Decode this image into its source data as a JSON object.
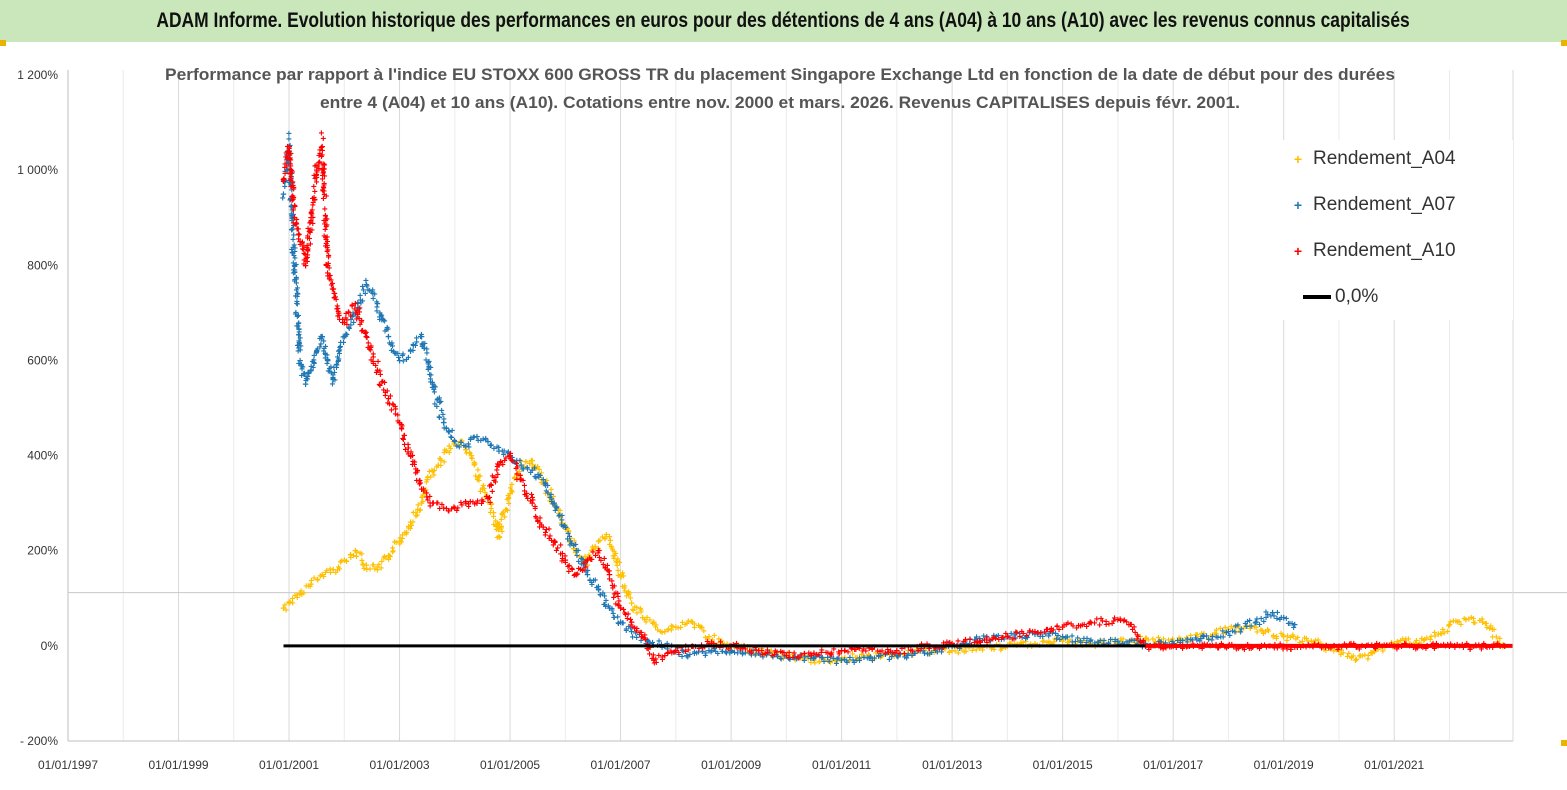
{
  "header": {
    "banner_title": "ADAM Informe. Evolution historique des performances en euros pour des détentions de 4 ans (A04) à 10 ans (A10) avec les revenus connus capitalisés"
  },
  "chart_data": {
    "type": "scatter",
    "title_lines": [
      "Performance par rapport à l'indice EU STOXX 600 GROSS TR  du placement Singapore Exchange Ltd en fonction de la date de début pour des durées",
      "entre 4 (A04) et 10 ans (A10). Cotations entre nov. 2000 et mars. 2026. Revenus CAPITALISES depuis févr. 2001."
    ],
    "xlabel": "",
    "ylabel": "",
    "x_ticks": [
      "01/01/1997",
      "01/01/1999",
      "01/01/2001",
      "01/01/2003",
      "01/01/2005",
      "01/01/2007",
      "01/01/2009",
      "01/01/2011",
      "01/01/2013",
      "01/01/2015",
      "01/01/2017",
      "01/01/2019",
      "01/01/2021"
    ],
    "xlim": [
      1997.0,
      2023.15
    ],
    "y_ticks": [
      "1 200%",
      "1 000%",
      "800%",
      "600%",
      "400%",
      "200%",
      "0%",
      "- 200%"
    ],
    "ylim": [
      -200,
      1200
    ],
    "grid": "vertical",
    "legend_position": "top-right",
    "series": [
      {
        "name": "Rendement_A04",
        "color": "#ffc000",
        "x": [
          2000.9,
          2001.0,
          2001.2,
          2001.4,
          2001.6,
          2001.8,
          2002.0,
          2002.2,
          2002.4,
          2002.6,
          2002.8,
          2003.0,
          2003.2,
          2003.4,
          2003.5,
          2003.7,
          2003.9,
          2004.1,
          2004.3,
          2004.5,
          2004.7,
          2004.8,
          2005.0,
          2005.2,
          2005.4,
          2005.6,
          2005.8,
          2006.0,
          2006.2,
          2006.4,
          2006.6,
          2006.8,
          2007.0,
          2007.2,
          2007.4,
          2007.6,
          2007.8,
          2008.0,
          2008.3,
          2008.6,
          2009.0,
          2009.5,
          2010.0,
          2010.5,
          2011.0,
          2011.5,
          2012.0,
          2012.5,
          2013.0,
          2013.5,
          2014.0,
          2014.5,
          2015.0,
          2015.5,
          2016.0,
          2016.5,
          2017.0,
          2017.5,
          2018.0,
          2018.5,
          2019.0,
          2019.5,
          2020.0,
          2020.3,
          2020.6,
          2021.0,
          2021.5,
          2021.8,
          2022.0,
          2022.3,
          2022.6,
          2023.0
        ],
        "y": [
          80,
          90,
          110,
          130,
          150,
          160,
          180,
          200,
          170,
          160,
          190,
          220,
          260,
          300,
          350,
          380,
          420,
          430,
          400,
          330,
          280,
          230,
          320,
          380,
          390,
          350,
          300,
          250,
          200,
          170,
          220,
          230,
          150,
          90,
          60,
          50,
          30,
          40,
          50,
          20,
          0,
          -10,
          -20,
          -30,
          -25,
          -20,
          -15,
          -10,
          -10,
          -5,
          0,
          5,
          10,
          5,
          10,
          15,
          10,
          20,
          35,
          40,
          20,
          10,
          -10,
          -30,
          -15,
          5,
          15,
          25,
          45,
          55,
          50,
          0
        ]
      },
      {
        "name": "Rendement_A07",
        "color": "#1f77b4",
        "x": [
          2000.9,
          2001.0,
          2001.1,
          2001.2,
          2001.3,
          2001.4,
          2001.5,
          2001.6,
          2001.7,
          2001.8,
          2001.9,
          2002.0,
          2002.2,
          2002.4,
          2002.6,
          2002.8,
          2003.0,
          2003.2,
          2003.4,
          2003.6,
          2003.8,
          2004.0,
          2004.2,
          2004.4,
          2004.6,
          2004.8,
          2005.0,
          2005.2,
          2005.4,
          2005.6,
          2005.8,
          2006.0,
          2006.2,
          2006.4,
          2006.6,
          2006.8,
          2007.0,
          2007.2,
          2007.5,
          2007.8,
          2008.2,
          2008.6,
          2009.0,
          2009.5,
          2010.0,
          2010.5,
          2011.0,
          2011.5,
          2012.0,
          2012.5,
          2013.0,
          2013.5,
          2014.0,
          2014.5,
          2015.0,
          2015.5,
          2016.0,
          2016.5,
          2017.0,
          2017.5,
          2018.0,
          2018.5,
          2018.8,
          2019.0,
          2019.2
        ],
        "y": [
          950,
          1050,
          800,
          600,
          550,
          580,
          620,
          650,
          600,
          560,
          620,
          650,
          700,
          760,
          720,
          650,
          600,
          620,
          650,
          550,
          470,
          430,
          420,
          440,
          430,
          410,
          400,
          380,
          370,
          350,
          300,
          250,
          200,
          150,
          120,
          80,
          50,
          30,
          10,
          0,
          -20,
          -10,
          -10,
          -15,
          -20,
          -25,
          -30,
          -25,
          -20,
          -15,
          0,
          15,
          20,
          25,
          20,
          10,
          10,
          5,
          5,
          15,
          30,
          50,
          70,
          60,
          45
        ]
      },
      {
        "name": "Rendement_A10",
        "color": "#ff0000",
        "x": [
          2000.9,
          2001.0,
          2001.1,
          2001.2,
          2001.3,
          2001.4,
          2001.5,
          2001.6,
          2001.7,
          2001.8,
          2001.9,
          2002.0,
          2002.2,
          2002.4,
          2002.6,
          2002.8,
          2003.0,
          2003.2,
          2003.4,
          2003.6,
          2003.8,
          2004.0,
          2004.2,
          2004.4,
          2004.6,
          2004.8,
          2005.0,
          2005.2,
          2005.4,
          2005.6,
          2005.8,
          2006.0,
          2006.2,
          2006.4,
          2006.6,
          2006.8,
          2007.0,
          2007.2,
          2007.4,
          2007.6,
          2007.8,
          2008.0,
          2008.3,
          2008.6,
          2009.0,
          2009.5,
          2010.0,
          2010.5,
          2011.0,
          2011.5,
          2012.0,
          2012.5,
          2013.0,
          2013.5,
          2014.0,
          2014.5,
          2015.0,
          2015.5,
          2016.0,
          2016.2,
          2016.5,
          2017.0,
          2018.0,
          2019.0,
          2020.0,
          2021.0,
          2022.0,
          2023.0
        ],
        "y": [
          980,
          1050,
          900,
          850,
          800,
          900,
          1000,
          1050,
          800,
          750,
          700,
          680,
          720,
          650,
          580,
          520,
          470,
          400,
          330,
          300,
          290,
          290,
          300,
          300,
          310,
          380,
          400,
          350,
          300,
          250,
          220,
          180,
          150,
          180,
          200,
          150,
          80,
          50,
          20,
          -30,
          -20,
          -10,
          0,
          5,
          0,
          -10,
          -20,
          -15,
          -10,
          -5,
          -10,
          0,
          5,
          10,
          20,
          30,
          40,
          50,
          55,
          45,
          0,
          0,
          0,
          0,
          0,
          0,
          0,
          0
        ]
      },
      {
        "name": "0,0%",
        "color": "#000000",
        "x": [
          2000.9,
          2023.15
        ],
        "y": [
          0,
          0
        ]
      }
    ]
  }
}
